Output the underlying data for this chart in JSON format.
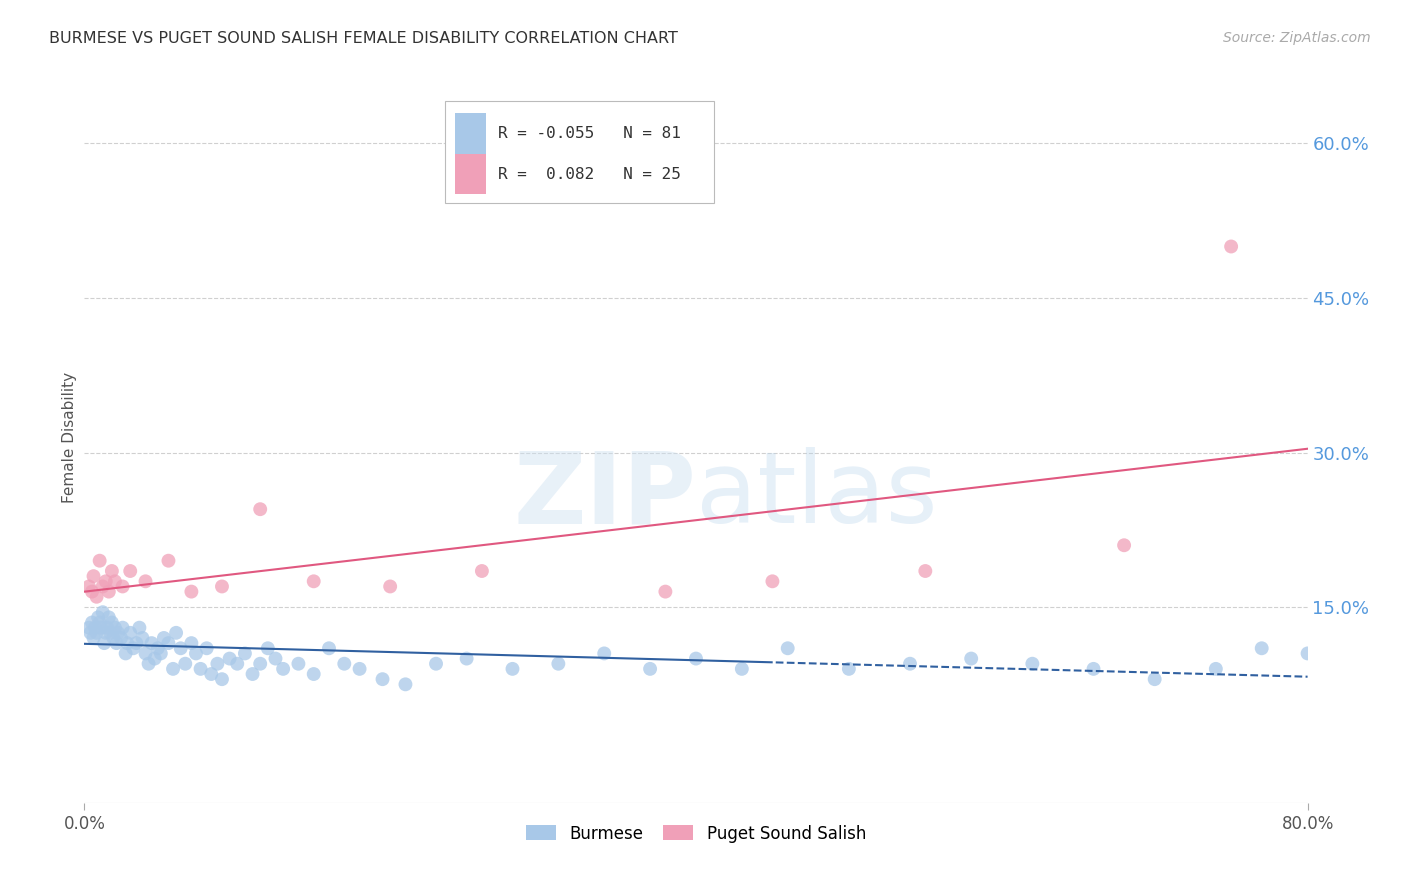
{
  "title": "BURMESE VS PUGET SOUND SALISH FEMALE DISABILITY CORRELATION CHART",
  "source": "Source: ZipAtlas.com",
  "ylabel": "Female Disability",
  "right_yticks": [
    "60.0%",
    "45.0%",
    "30.0%",
    "15.0%"
  ],
  "right_ytick_vals": [
    0.6,
    0.45,
    0.3,
    0.15
  ],
  "xlim": [
    0.0,
    0.8
  ],
  "ylim": [
    -0.04,
    0.67
  ],
  "burmese_color": "#a8c8e8",
  "puget_color": "#f0a0b8",
  "burmese_line_color": "#3060a0",
  "puget_line_color": "#e05880",
  "legend_r_burmese": "-0.055",
  "legend_n_burmese": "81",
  "legend_r_puget": "0.082",
  "legend_n_puget": "25",
  "burmese_x": [
    0.003,
    0.004,
    0.005,
    0.006,
    0.007,
    0.008,
    0.009,
    0.01,
    0.011,
    0.012,
    0.013,
    0.014,
    0.015,
    0.016,
    0.017,
    0.018,
    0.019,
    0.02,
    0.021,
    0.022,
    0.024,
    0.025,
    0.027,
    0.028,
    0.03,
    0.032,
    0.034,
    0.036,
    0.038,
    0.04,
    0.042,
    0.044,
    0.046,
    0.048,
    0.05,
    0.052,
    0.055,
    0.058,
    0.06,
    0.063,
    0.066,
    0.07,
    0.073,
    0.076,
    0.08,
    0.083,
    0.087,
    0.09,
    0.095,
    0.1,
    0.105,
    0.11,
    0.115,
    0.12,
    0.125,
    0.13,
    0.14,
    0.15,
    0.16,
    0.17,
    0.18,
    0.195,
    0.21,
    0.23,
    0.25,
    0.28,
    0.31,
    0.34,
    0.37,
    0.4,
    0.43,
    0.46,
    0.5,
    0.54,
    0.58,
    0.62,
    0.66,
    0.7,
    0.74,
    0.77,
    0.8
  ],
  "burmese_y": [
    0.13,
    0.125,
    0.135,
    0.12,
    0.13,
    0.125,
    0.14,
    0.135,
    0.13,
    0.145,
    0.115,
    0.125,
    0.13,
    0.14,
    0.125,
    0.135,
    0.12,
    0.13,
    0.115,
    0.125,
    0.12,
    0.13,
    0.105,
    0.115,
    0.125,
    0.11,
    0.115,
    0.13,
    0.12,
    0.105,
    0.095,
    0.115,
    0.1,
    0.11,
    0.105,
    0.12,
    0.115,
    0.09,
    0.125,
    0.11,
    0.095,
    0.115,
    0.105,
    0.09,
    0.11,
    0.085,
    0.095,
    0.08,
    0.1,
    0.095,
    0.105,
    0.085,
    0.095,
    0.11,
    0.1,
    0.09,
    0.095,
    0.085,
    0.11,
    0.095,
    0.09,
    0.08,
    0.075,
    0.095,
    0.1,
    0.09,
    0.095,
    0.105,
    0.09,
    0.1,
    0.09,
    0.11,
    0.09,
    0.095,
    0.1,
    0.095,
    0.09,
    0.08,
    0.09,
    0.11,
    0.105
  ],
  "puget_x": [
    0.003,
    0.005,
    0.006,
    0.008,
    0.01,
    0.012,
    0.014,
    0.016,
    0.018,
    0.02,
    0.025,
    0.03,
    0.04,
    0.055,
    0.07,
    0.09,
    0.115,
    0.15,
    0.2,
    0.26,
    0.38,
    0.45,
    0.55,
    0.68,
    0.75
  ],
  "puget_y": [
    0.17,
    0.165,
    0.18,
    0.16,
    0.195,
    0.17,
    0.175,
    0.165,
    0.185,
    0.175,
    0.17,
    0.185,
    0.175,
    0.195,
    0.165,
    0.17,
    0.245,
    0.175,
    0.17,
    0.185,
    0.165,
    0.175,
    0.185,
    0.21,
    0.5
  ],
  "background_color": "#ffffff",
  "grid_color": "#d0d0d0",
  "title_color": "#333333",
  "right_axis_color": "#5599dd",
  "source_color": "#aaaaaa"
}
